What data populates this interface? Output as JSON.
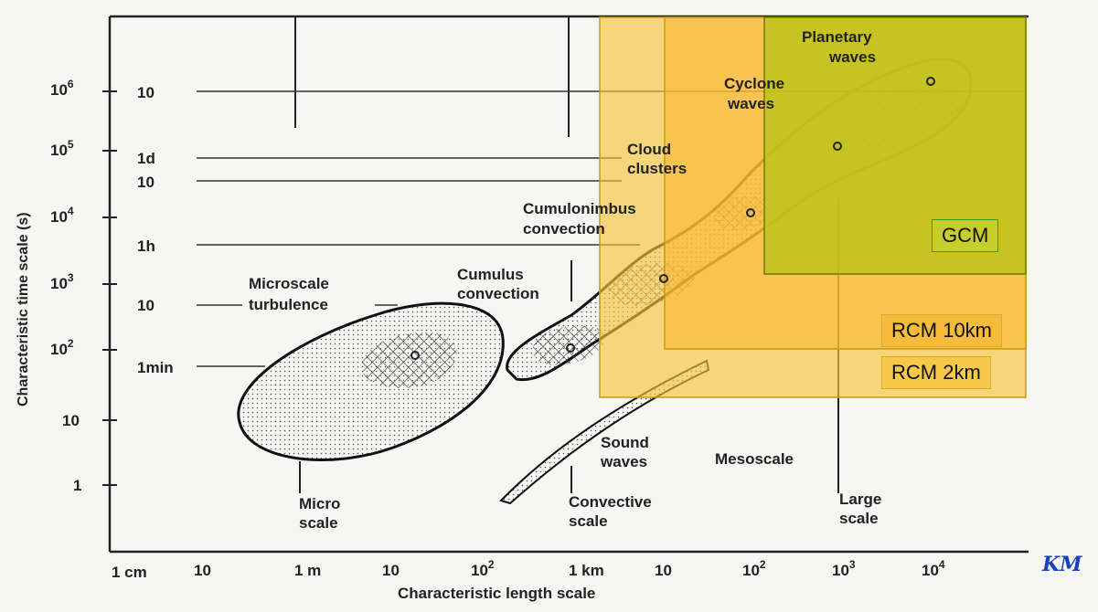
{
  "axes": {
    "x_title": "Characteristic length scale",
    "y_title": "Characteristic time scale (s)",
    "x_ticks_top": [
      "1 cm",
      "10",
      "1 m",
      "10",
      "10",
      "1 km",
      "10",
      "10",
      "10",
      "10"
    ],
    "x_ticks_sup": [
      "",
      "",
      "",
      "",
      "2",
      "",
      "",
      "2",
      "3",
      "4"
    ],
    "km_mark": "KM",
    "y_ticks_left": [
      {
        "base": "10",
        "sup": "6"
      },
      {
        "base": "10",
        "sup": "5"
      },
      {
        "base": "10",
        "sup": "4"
      },
      {
        "base": "10",
        "sup": "3"
      },
      {
        "base": "10",
        "sup": "2"
      },
      {
        "base": "10",
        "sup": ""
      },
      {
        "base": "1",
        "sup": ""
      }
    ],
    "y_ticks_inner": [
      "10",
      "1d",
      "10",
      "1h",
      "10",
      "1min"
    ]
  },
  "phenomena": {
    "microscale": "Microscale",
    "turbulence": "turbulence",
    "cumulus_1": "Cumulus",
    "cumulus_2": "convection",
    "cumulonimbus_1": "Cumulonimbus",
    "cumulonimbus_2": "convection",
    "cloud_1": "Cloud",
    "cloud_2": "clusters",
    "cyclone_1": "Cyclone",
    "cyclone_2": "waves",
    "planetary_1": "Planetary",
    "planetary_2": "waves",
    "sound_1": "Sound",
    "sound_2": "waves",
    "mesoscale": "Mesoscale"
  },
  "scales": {
    "micro_1": "Micro",
    "micro_2": "scale",
    "convective_1": "Convective",
    "convective_2": "scale",
    "large_1": "Large",
    "large_2": "scale"
  },
  "overlays": {
    "rcm2": {
      "label": "RCM 2km",
      "color": "#f7c53a"
    },
    "rcm10": {
      "label": "RCM 10km",
      "color": "#f9b52a"
    },
    "gcm": {
      "label": "GCM",
      "color": "#bcc41c"
    }
  }
}
